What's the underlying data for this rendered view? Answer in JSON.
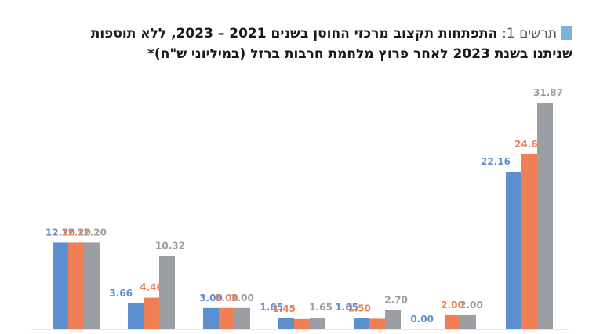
{
  "title": {
    "figure_label": "תרשים 1:",
    "line1": "התפתחות תקצוב מרכזי החוסן בשנים 2021 – 2023, ללא תוספות",
    "line2": "שניתנו בשנת 2023 לאחר פרוץ מלחמת חרבות ברזל (במיליוני ש\"ח)*"
  },
  "chart_data": {
    "type": "bar",
    "categories": [
      "",
      "",
      "",
      "",
      "",
      "",
      ""
    ],
    "series": [
      {
        "color": "#5b8fd0",
        "values": [
          12.2,
          3.66,
          3.0,
          1.65,
          1.65,
          0.0,
          22.16
        ]
      },
      {
        "color": "#f07f55",
        "values": [
          12.2,
          4.46,
          3.0,
          1.45,
          1.5,
          2.0,
          24.61
        ]
      },
      {
        "color": "#9b9ea3",
        "values": [
          12.2,
          10.32,
          3.0,
          1.65,
          2.7,
          2.0,
          31.87
        ]
      }
    ],
    "value_labels": [
      [
        "12.20",
        "12.20",
        "12.20"
      ],
      [
        "3.66",
        "4.46",
        "10.32"
      ],
      [
        "3.00",
        "3.00",
        "3.00"
      ],
      [
        "1.65",
        "1.45",
        "1.65"
      ],
      [
        "1.65",
        "1.50",
        "2.70"
      ],
      [
        "0.00",
        "2.00",
        "2.00"
      ],
      [
        "22.16",
        "24.61",
        "31.87"
      ]
    ],
    "ylim": [
      0,
      32
    ],
    "grid": false,
    "legend": "none"
  }
}
